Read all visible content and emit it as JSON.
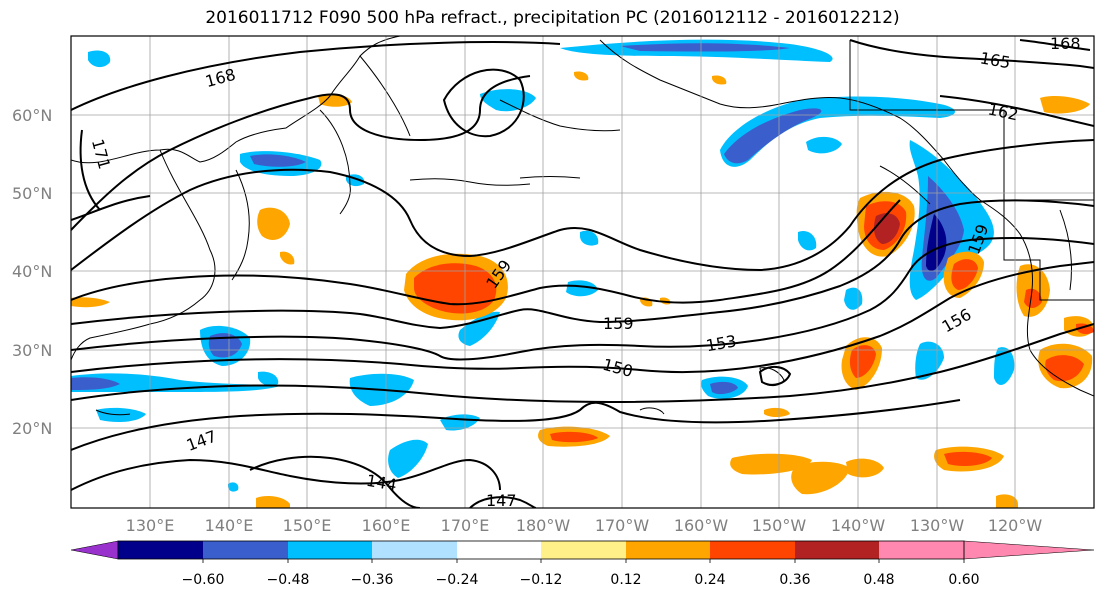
{
  "title": "2016011712 F090 500 hPa refract., precipitation PC (2016012112 - 2016012212)",
  "lat_labels": [
    "60°N",
    "50°N",
    "40°N",
    "30°N",
    "20°N"
  ],
  "lon_labels": [
    "130°E",
    "140°E",
    "150°E",
    "160°E",
    "170°E",
    "180°W",
    "170°W",
    "160°W",
    "150°W",
    "140°W",
    "130°W",
    "120°W"
  ],
  "contour_labels": [
    "168",
    "171",
    "165",
    "168",
    "162",
    "159",
    "159",
    "159",
    "153",
    "156",
    "150",
    "147",
    "144",
    "147"
  ],
  "colorbar": {
    "tick_labels": [
      "−0.60",
      "−0.48",
      "−0.36",
      "−0.24",
      "−0.12",
      "0.12",
      "0.24",
      "0.36",
      "0.48",
      "0.60"
    ],
    "colors": [
      "#9932cc",
      "#00008b",
      "#3a5fcd",
      "#00bfff",
      "#b0e2ff",
      "#ffffff",
      "#fff08a",
      "#ffa500",
      "#ff4500",
      "#b22222",
      "#ff88b0"
    ]
  },
  "colors": {
    "neg_strong": "#00008b",
    "neg_med": "#3a5fcd",
    "neg": "#00bfff",
    "neg_light": "#b0e2ff",
    "pos_light": "#fff08a",
    "pos": "#ffa500",
    "pos_med": "#ff4500",
    "pos_strong": "#b22222"
  }
}
